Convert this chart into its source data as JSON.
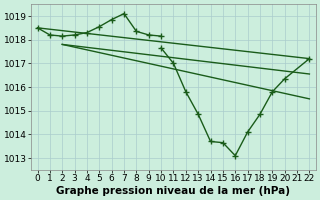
{
  "background_color": "#cceedd",
  "grid_color": "#aacccc",
  "line_color": "#1a5c1a",
  "marker": "+",
  "markersize": 5,
  "linewidth": 1.0,
  "xlabel": "Graphe pression niveau de la mer (hPa)",
  "xlabel_fontsize": 7.5,
  "tick_fontsize": 6.5,
  "ylim": [
    1012.5,
    1019.5
  ],
  "xlim": [
    -0.5,
    22.5
  ],
  "yticks": [
    1013,
    1014,
    1015,
    1016,
    1017,
    1018,
    1019
  ],
  "xticks": [
    0,
    1,
    2,
    3,
    4,
    5,
    6,
    7,
    8,
    9,
    10,
    11,
    12,
    13,
    14,
    15,
    16,
    17,
    18,
    19,
    20,
    21,
    22
  ],
  "line1_marked": {
    "x": [
      0,
      1,
      2,
      3,
      4,
      5,
      6,
      7,
      8,
      9,
      10
    ],
    "y": [
      1018.5,
      1018.2,
      1018.15,
      1018.2,
      1018.3,
      1018.55,
      1018.85,
      1019.1,
      1018.35,
      1018.2,
      1018.15
    ]
  },
  "line2_straight_top": {
    "x": [
      0,
      22
    ],
    "y": [
      1018.5,
      1017.2
    ]
  },
  "line3_straight_mid": {
    "x": [
      2,
      22
    ],
    "y": [
      1017.8,
      1016.55
    ]
  },
  "line4_straight_low": {
    "x": [
      2,
      22
    ],
    "y": [
      1017.8,
      1015.5
    ]
  },
  "line5_marked_drop": {
    "x": [
      10,
      11,
      12,
      13,
      14,
      15,
      16,
      17,
      18,
      19,
      20,
      22
    ],
    "y": [
      1017.65,
      1017.0,
      1015.8,
      1014.85,
      1013.7,
      1013.65,
      1013.1,
      1014.1,
      1014.85,
      1015.8,
      1016.35,
      1017.2
    ]
  }
}
